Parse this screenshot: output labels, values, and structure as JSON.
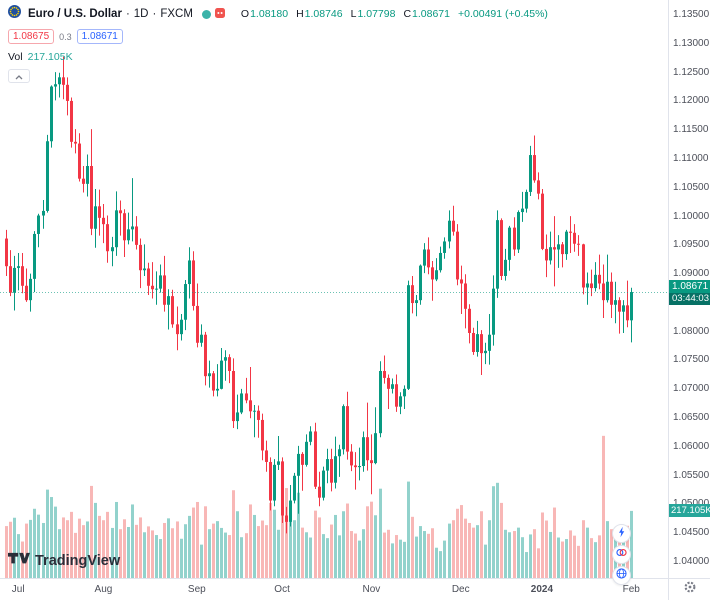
{
  "legend": {
    "symbol": "Euro / U.S. Dollar",
    "separator": "·",
    "interval": "1D",
    "exchange": "FXCM",
    "ohlc": {
      "o_label": "O",
      "open": "1.08180",
      "h_label": "H",
      "high": "1.08746",
      "l_label": "L",
      "low": "1.07798",
      "c_label": "C",
      "close": "1.08671",
      "change": "+0.00491 (+0.45%)"
    },
    "sell_price": "1.08675",
    "spread": "0.3",
    "buy_price": "1.08671",
    "volume_label": "Vol",
    "volume_value": "217.105K"
  },
  "price_axis": {
    "labels": [
      "1.13500",
      "1.13000",
      "1.12500",
      "1.12000",
      "1.11500",
      "1.11000",
      "1.10500",
      "1.10000",
      "1.09500",
      "1.09000",
      "1.08500",
      "1.08000",
      "1.07500",
      "1.07000",
      "1.06500",
      "1.06000",
      "1.05500",
      "1.05000",
      "1.04500",
      "1.04000"
    ]
  },
  "time_axis": {
    "labels": [
      {
        "text": "Jul",
        "index": 3
      },
      {
        "text": "Aug",
        "index": 24
      },
      {
        "text": "Sep",
        "index": 47
      },
      {
        "text": "Oct",
        "index": 68
      },
      {
        "text": "Nov",
        "index": 90
      },
      {
        "text": "Dec",
        "index": 112
      },
      {
        "text": "2024",
        "index": 132,
        "bold": true
      },
      {
        "text": "Feb",
        "index": 154
      }
    ]
  },
  "price_tag": {
    "price": "1.08671",
    "countdown": "03:44:03"
  },
  "volume_tag": "217.105K",
  "footer": {
    "logo_text": "TradingView"
  },
  "colors": {
    "up": "#089981",
    "down": "#f23645",
    "vol_up": "rgba(38,166,154,0.5)",
    "vol_down": "rgba(239,83,80,0.42)",
    "price_line": "rgba(8,153,129,0.6)",
    "buy_blue": "#2962ff",
    "sell_red": "#f23645",
    "price_tag_bg": "#089981",
    "countdown_bg": "#077165",
    "volume_tag_bg": "#26a69a"
  },
  "chart_data": {
    "type": "candlestick",
    "title": "Euro / U.S. Dollar, 1D, FXCM",
    "grid": "off",
    "price_range_visible": [
      1.04,
      1.135
    ],
    "last_close": 1.08671,
    "day_open": 1.0818,
    "day_high": 1.08746,
    "day_low": 1.07798,
    "change_text": "+0.00491 (+0.45%)",
    "current_volume_K": 217.105,
    "month_ticks": [
      "Jul",
      "Aug",
      "Sep",
      "Oct",
      "Nov",
      "Dec",
      "2024",
      "Feb"
    ],
    "candles": {
      "columns": [
        "open",
        "high",
        "low",
        "close",
        "volume_K"
      ],
      "rows": [
        [
          1.096,
          1.0975,
          1.0895,
          1.0912,
          168
        ],
        [
          1.0912,
          1.094,
          1.086,
          1.0866,
          182
        ],
        [
          1.0866,
          1.093,
          1.0835,
          1.0909,
          195
        ],
        [
          1.0909,
          1.0935,
          1.087,
          1.0912,
          142
        ],
        [
          1.0912,
          1.0935,
          1.0865,
          1.0878,
          118
        ],
        [
          1.0878,
          1.0908,
          1.085,
          1.0853,
          176
        ],
        [
          1.0853,
          1.0899,
          1.0833,
          1.089,
          188
        ],
        [
          1.089,
          1.0973,
          1.0867,
          1.0968,
          224
        ],
        [
          1.0968,
          1.1003,
          1.0945,
          1.1,
          205
        ],
        [
          1.1,
          1.1027,
          1.0977,
          1.1008,
          178
        ],
        [
          1.1008,
          1.114,
          1.1005,
          1.1129,
          286
        ],
        [
          1.1129,
          1.1226,
          1.1118,
          1.1224,
          262
        ],
        [
          1.1224,
          1.1249,
          1.12,
          1.1228,
          231
        ],
        [
          1.1228,
          1.1248,
          1.1205,
          1.124,
          158
        ],
        [
          1.124,
          1.1276,
          1.1202,
          1.1227,
          196
        ],
        [
          1.1227,
          1.124,
          1.1174,
          1.1199,
          187
        ],
        [
          1.1199,
          1.1205,
          1.1118,
          1.1128,
          214
        ],
        [
          1.1128,
          1.115,
          1.1108,
          1.1125,
          146
        ],
        [
          1.1125,
          1.1143,
          1.1059,
          1.1064,
          192
        ],
        [
          1.1064,
          1.1086,
          1.104,
          1.1055,
          171
        ],
        [
          1.1055,
          1.1106,
          1.1033,
          1.1086,
          183
        ],
        [
          1.1086,
          1.115,
          1.0966,
          1.0977,
          298
        ],
        [
          1.0977,
          1.1046,
          1.0944,
          1.1016,
          243
        ],
        [
          1.1016,
          1.1045,
          1.0965,
          1.0996,
          201
        ],
        [
          1.0996,
          1.102,
          1.0952,
          1.0985,
          187
        ],
        [
          1.0985,
          1.1,
          1.0918,
          1.0938,
          214
        ],
        [
          1.0938,
          1.0963,
          1.0912,
          1.0945,
          162
        ],
        [
          1.0945,
          1.1042,
          1.093,
          1.1009,
          246
        ],
        [
          1.1009,
          1.1026,
          1.0965,
          1.1004,
          158
        ],
        [
          1.1004,
          1.1011,
          1.0928,
          1.0957,
          190
        ],
        [
          1.0957,
          1.1005,
          1.095,
          1.0976,
          165
        ],
        [
          1.0976,
          1.1065,
          1.0955,
          1.0981,
          238
        ],
        [
          1.0981,
          1.0999,
          1.0941,
          1.0949,
          172
        ],
        [
          1.0949,
          1.096,
          1.0874,
          1.0905,
          196
        ],
        [
          1.0905,
          1.095,
          1.0895,
          1.0908,
          148
        ],
        [
          1.0908,
          1.0918,
          1.0862,
          1.0878,
          167
        ],
        [
          1.0878,
          1.0919,
          1.0856,
          1.0872,
          154
        ],
        [
          1.0872,
          1.0903,
          1.0845,
          1.0873,
          139
        ],
        [
          1.0873,
          1.0915,
          1.0866,
          1.0896,
          126
        ],
        [
          1.0896,
          1.093,
          1.0833,
          1.0845,
          178
        ],
        [
          1.0845,
          1.0872,
          1.0802,
          1.086,
          193
        ],
        [
          1.086,
          1.0871,
          1.0805,
          1.0811,
          161
        ],
        [
          1.0811,
          1.0842,
          1.0766,
          1.0794,
          183
        ],
        [
          1.0794,
          1.0829,
          1.0783,
          1.0819,
          127
        ],
        [
          1.0819,
          1.0888,
          1.0801,
          1.0881,
          174
        ],
        [
          1.0881,
          1.0945,
          1.0856,
          1.0922,
          201
        ],
        [
          1.0922,
          1.0938,
          1.0835,
          1.0843,
          228
        ],
        [
          1.0843,
          1.0882,
          1.0771,
          1.0779,
          246
        ],
        [
          1.0779,
          1.0811,
          1.0772,
          1.0793,
          108
        ],
        [
          1.0793,
          1.0798,
          1.0705,
          1.0721,
          232
        ],
        [
          1.0721,
          1.0748,
          1.0701,
          1.0726,
          158
        ],
        [
          1.0726,
          1.073,
          1.0686,
          1.0696,
          176
        ],
        [
          1.0696,
          1.0742,
          1.0686,
          1.0699,
          184
        ],
        [
          1.0699,
          1.077,
          1.0698,
          1.0748,
          162
        ],
        [
          1.0748,
          1.0766,
          1.0713,
          1.0754,
          147
        ],
        [
          1.0754,
          1.0759,
          1.0709,
          1.073,
          139
        ],
        [
          1.073,
          1.0752,
          1.0631,
          1.0643,
          284
        ],
        [
          1.0643,
          1.0689,
          1.0629,
          1.0658,
          216
        ],
        [
          1.0658,
          1.0699,
          1.0655,
          1.0691,
          132
        ],
        [
          1.0691,
          1.0718,
          1.0674,
          1.0679,
          145
        ],
        [
          1.0679,
          1.0737,
          1.0648,
          1.066,
          238
        ],
        [
          1.066,
          1.0671,
          1.0615,
          1.0661,
          204
        ],
        [
          1.0661,
          1.067,
          1.0614,
          1.0645,
          168
        ],
        [
          1.0645,
          1.0656,
          1.0575,
          1.0592,
          186
        ],
        [
          1.0592,
          1.0609,
          1.0555,
          1.0572,
          171
        ],
        [
          1.0572,
          1.058,
          1.0488,
          1.0505,
          243
        ],
        [
          1.0505,
          1.0577,
          1.0495,
          1.0567,
          221
        ],
        [
          1.0567,
          1.0617,
          1.0558,
          1.0573,
          156
        ],
        [
          1.0573,
          1.058,
          1.0466,
          1.0479,
          262
        ],
        [
          1.0479,
          1.0494,
          1.0448,
          1.0468,
          291
        ],
        [
          1.0468,
          1.0532,
          1.046,
          1.0505,
          234
        ],
        [
          1.0505,
          1.0553,
          1.05,
          1.0548,
          187
        ],
        [
          1.0548,
          1.06,
          1.0482,
          1.0586,
          276
        ],
        [
          1.0586,
          1.0589,
          1.0522,
          1.0567,
          163
        ],
        [
          1.0567,
          1.062,
          1.0564,
          1.0607,
          148
        ],
        [
          1.0607,
          1.0634,
          1.0601,
          1.0625,
          131
        ],
        [
          1.0625,
          1.064,
          1.0525,
          1.0529,
          218
        ],
        [
          1.0529,
          1.0555,
          1.0495,
          1.051,
          196
        ],
        [
          1.051,
          1.0564,
          1.0505,
          1.0557,
          142
        ],
        [
          1.0557,
          1.0595,
          1.0535,
          1.0577,
          129
        ],
        [
          1.0577,
          1.0595,
          1.0521,
          1.0536,
          173
        ],
        [
          1.0536,
          1.0616,
          1.0526,
          1.0582,
          204
        ],
        [
          1.0582,
          1.0602,
          1.0546,
          1.0594,
          138
        ],
        [
          1.0594,
          1.0672,
          1.0585,
          1.0669,
          216
        ],
        [
          1.0669,
          1.0694,
          1.0576,
          1.059,
          241
        ],
        [
          1.059,
          1.0603,
          1.0556,
          1.0566,
          152
        ],
        [
          1.0566,
          1.0589,
          1.0524,
          1.0563,
          144
        ],
        [
          1.0563,
          1.0597,
          1.054,
          1.0565,
          121
        ],
        [
          1.0565,
          1.0625,
          1.0555,
          1.0615,
          158
        ],
        [
          1.0615,
          1.0675,
          1.0557,
          1.0575,
          232
        ],
        [
          1.0575,
          1.062,
          1.0516,
          1.057,
          247
        ],
        [
          1.057,
          1.0667,
          1.0568,
          1.0622,
          203
        ],
        [
          1.0622,
          1.0747,
          1.0615,
          1.073,
          289
        ],
        [
          1.073,
          1.0757,
          1.0708,
          1.0718,
          147
        ],
        [
          1.0718,
          1.0724,
          1.0664,
          1.0699,
          156
        ],
        [
          1.0699,
          1.0717,
          1.0691,
          1.0707,
          112
        ],
        [
          1.0707,
          1.0724,
          1.0659,
          1.0668,
          139
        ],
        [
          1.0668,
          1.0693,
          1.0655,
          1.0686,
          124
        ],
        [
          1.0686,
          1.0705,
          1.0664,
          1.0699,
          117
        ],
        [
          1.0699,
          1.0887,
          1.0697,
          1.0879,
          312
        ],
        [
          1.0879,
          1.0895,
          1.083,
          1.0848,
          198
        ],
        [
          1.0848,
          1.0862,
          1.0825,
          1.0853,
          134
        ],
        [
          1.0853,
          1.0915,
          1.0845,
          1.0913,
          168
        ],
        [
          1.0913,
          1.0952,
          1.09,
          1.0941,
          152
        ],
        [
          1.0941,
          1.0962,
          1.0898,
          1.091,
          143
        ],
        [
          1.091,
          1.0921,
          1.0852,
          1.0889,
          161
        ],
        [
          1.0889,
          1.0926,
          1.0886,
          1.0905,
          98
        ],
        [
          1.0905,
          1.0946,
          1.0901,
          1.0935,
          87
        ],
        [
          1.0935,
          1.0962,
          1.0925,
          1.0955,
          121
        ],
        [
          1.0955,
          1.1009,
          1.0943,
          1.0991,
          176
        ],
        [
          1.0991,
          1.1017,
          1.0965,
          1.0972,
          187
        ],
        [
          1.0972,
          1.0985,
          1.0879,
          1.0889,
          224
        ],
        [
          1.0889,
          1.0913,
          1.0829,
          1.0882,
          236
        ],
        [
          1.0882,
          1.0898,
          1.0804,
          1.0838,
          192
        ],
        [
          1.0838,
          1.0846,
          1.0778,
          1.0796,
          178
        ],
        [
          1.0796,
          1.0805,
          1.0758,
          1.0763,
          163
        ],
        [
          1.0763,
          1.0817,
          1.0755,
          1.0794,
          171
        ],
        [
          1.0794,
          1.0801,
          1.0723,
          1.0761,
          216
        ],
        [
          1.0761,
          1.0779,
          1.0742,
          1.0765,
          108
        ],
        [
          1.0765,
          1.0829,
          1.0741,
          1.0793,
          187
        ],
        [
          1.0793,
          1.0896,
          1.0774,
          1.0873,
          297
        ],
        [
          1.0873,
          1.1009,
          1.0857,
          1.0992,
          308
        ],
        [
          1.0992,
          1.0995,
          1.0888,
          1.0895,
          243
        ],
        [
          1.0895,
          1.0942,
          1.0887,
          1.0923,
          156
        ],
        [
          1.0923,
          1.0982,
          1.0904,
          1.0979,
          148
        ],
        [
          1.0979,
          1.0997,
          1.093,
          1.0941,
          152
        ],
        [
          1.0941,
          1.1009,
          1.0935,
          1.1006,
          163
        ],
        [
          1.1006,
          1.1041,
          1.0989,
          1.1012,
          132
        ],
        [
          1.1012,
          1.1045,
          1.1005,
          1.1041,
          84
        ],
        [
          1.1041,
          1.1121,
          1.1034,
          1.1105,
          141
        ],
        [
          1.1105,
          1.1139,
          1.1057,
          1.1061,
          158
        ],
        [
          1.1061,
          1.1075,
          1.1028,
          1.1038,
          96
        ],
        [
          1.1038,
          1.1046,
          1.094,
          1.0942,
          212
        ],
        [
          1.0942,
          1.0967,
          1.0893,
          1.0922,
          186
        ],
        [
          1.0922,
          1.0972,
          1.0915,
          1.0945,
          149
        ],
        [
          1.0945,
          1.0999,
          1.0877,
          1.0941,
          228
        ],
        [
          1.0941,
          1.0966,
          1.0909,
          1.095,
          131
        ],
        [
          1.095,
          1.0954,
          1.091,
          1.0933,
          118
        ],
        [
          1.0933,
          1.0975,
          1.0923,
          1.0972,
          126
        ],
        [
          1.0972,
          1.0999,
          1.0935,
          1.097,
          154
        ],
        [
          1.097,
          1.0985,
          1.0937,
          1.0951,
          137
        ],
        [
          1.0951,
          1.0966,
          1.093,
          1.095,
          104
        ],
        [
          1.095,
          1.0951,
          1.0863,
          1.0875,
          187
        ],
        [
          1.0875,
          1.0901,
          1.0845,
          1.0882,
          163
        ],
        [
          1.0882,
          1.0906,
          1.086,
          1.0874,
          129
        ],
        [
          1.0874,
          1.0919,
          1.0868,
          1.0897,
          116
        ],
        [
          1.0897,
          1.0932,
          1.0872,
          1.0882,
          138
        ],
        [
          1.0882,
          1.0915,
          1.0822,
          1.0853,
          460
        ],
        [
          1.0853,
          1.0932,
          1.0849,
          1.0885,
          184
        ],
        [
          1.0885,
          1.0901,
          1.0822,
          1.0845,
          158
        ],
        [
          1.0845,
          1.0885,
          1.0813,
          1.0853,
          142
        ],
        [
          1.0853,
          1.0858,
          1.0795,
          1.0833,
          131
        ],
        [
          1.0833,
          1.0853,
          1.0796,
          1.0844,
          117
        ],
        [
          1.0844,
          1.0887,
          1.0806,
          1.0818,
          169
        ],
        [
          1.0818,
          1.08746,
          1.07798,
          1.08671,
          217.105
        ]
      ]
    }
  }
}
